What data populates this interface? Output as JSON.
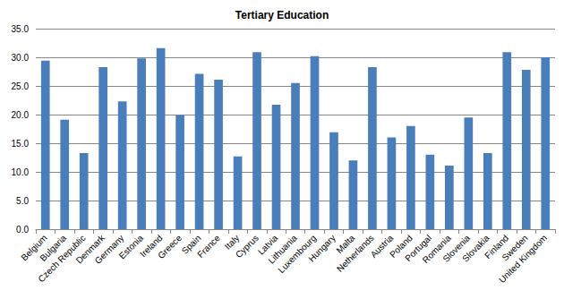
{
  "chart_data": {
    "type": "bar",
    "title": "Tertiary Education",
    "categories": [
      "Belgium",
      "Bulgaria",
      "Czech Republic",
      "Denmark",
      "Germany",
      "Estonia",
      "Ireland",
      "Greece",
      "Spain",
      "France",
      "Italy",
      "Cyprus",
      "Latvia",
      "Lithuania",
      "Luxembourg",
      "Hungary",
      "Malta",
      "Netherlands",
      "Austria",
      "Poland",
      "Portugal",
      "Romania",
      "Slovenia",
      "Slovakia",
      "Finland",
      "Sweden",
      "United Kingdom"
    ],
    "values": [
      29.4,
      19.1,
      13.3,
      28.3,
      22.3,
      29.8,
      31.6,
      19.9,
      27.1,
      26.1,
      12.7,
      30.9,
      21.7,
      25.5,
      30.2,
      16.9,
      12.0,
      28.3,
      16.0,
      18.0,
      13.0,
      11.1,
      19.5,
      13.3,
      30.9,
      27.8,
      30.0
    ],
    "color": "#4a7ebb",
    "ylim": [
      0,
      35
    ],
    "yticks": [
      {
        "value": 0,
        "label": "0.0"
      },
      {
        "value": 5,
        "label": "5.0"
      },
      {
        "value": 10,
        "label": "10.0"
      },
      {
        "value": 15,
        "label": "15.0"
      },
      {
        "value": 20,
        "label": "20.0"
      },
      {
        "value": 25,
        "label": "25.0"
      },
      {
        "value": 30,
        "label": "30.0"
      },
      {
        "value": 35,
        "label": "35.0"
      }
    ],
    "grid": true
  }
}
